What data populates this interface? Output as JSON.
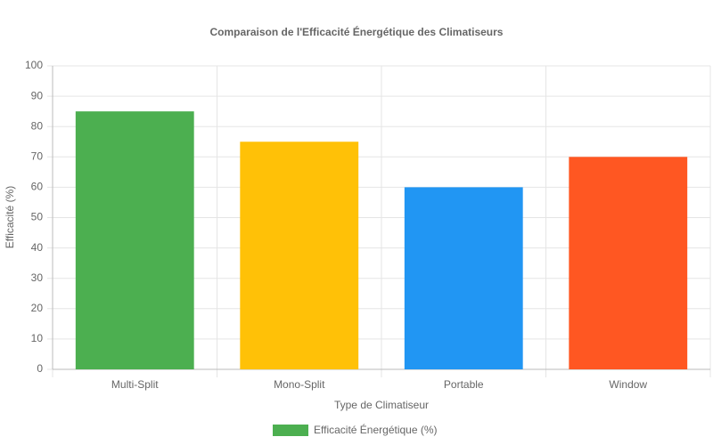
{
  "chart_data": {
    "type": "bar",
    "title": "Comparaison de l'Efficacité Énergétique des Climatiseurs",
    "x_label": "Type de Climatiseur",
    "y_label": "Efficacité (%)",
    "categories": [
      "Multi-Split",
      "Mono-Split",
      "Portable",
      "Window"
    ],
    "series": [
      {
        "name": "Efficacité Énergétique (%)",
        "colors": [
          "#4caf50",
          "#ffc107",
          "#2196f3",
          "#ff5722"
        ],
        "values": [
          85,
          75,
          60,
          70
        ]
      }
    ],
    "ylim": [
      0,
      100
    ],
    "yticks": [
      0,
      10,
      20,
      30,
      40,
      50,
      60,
      70,
      80,
      90,
      100
    ],
    "grid": true,
    "legend": "bottom"
  }
}
